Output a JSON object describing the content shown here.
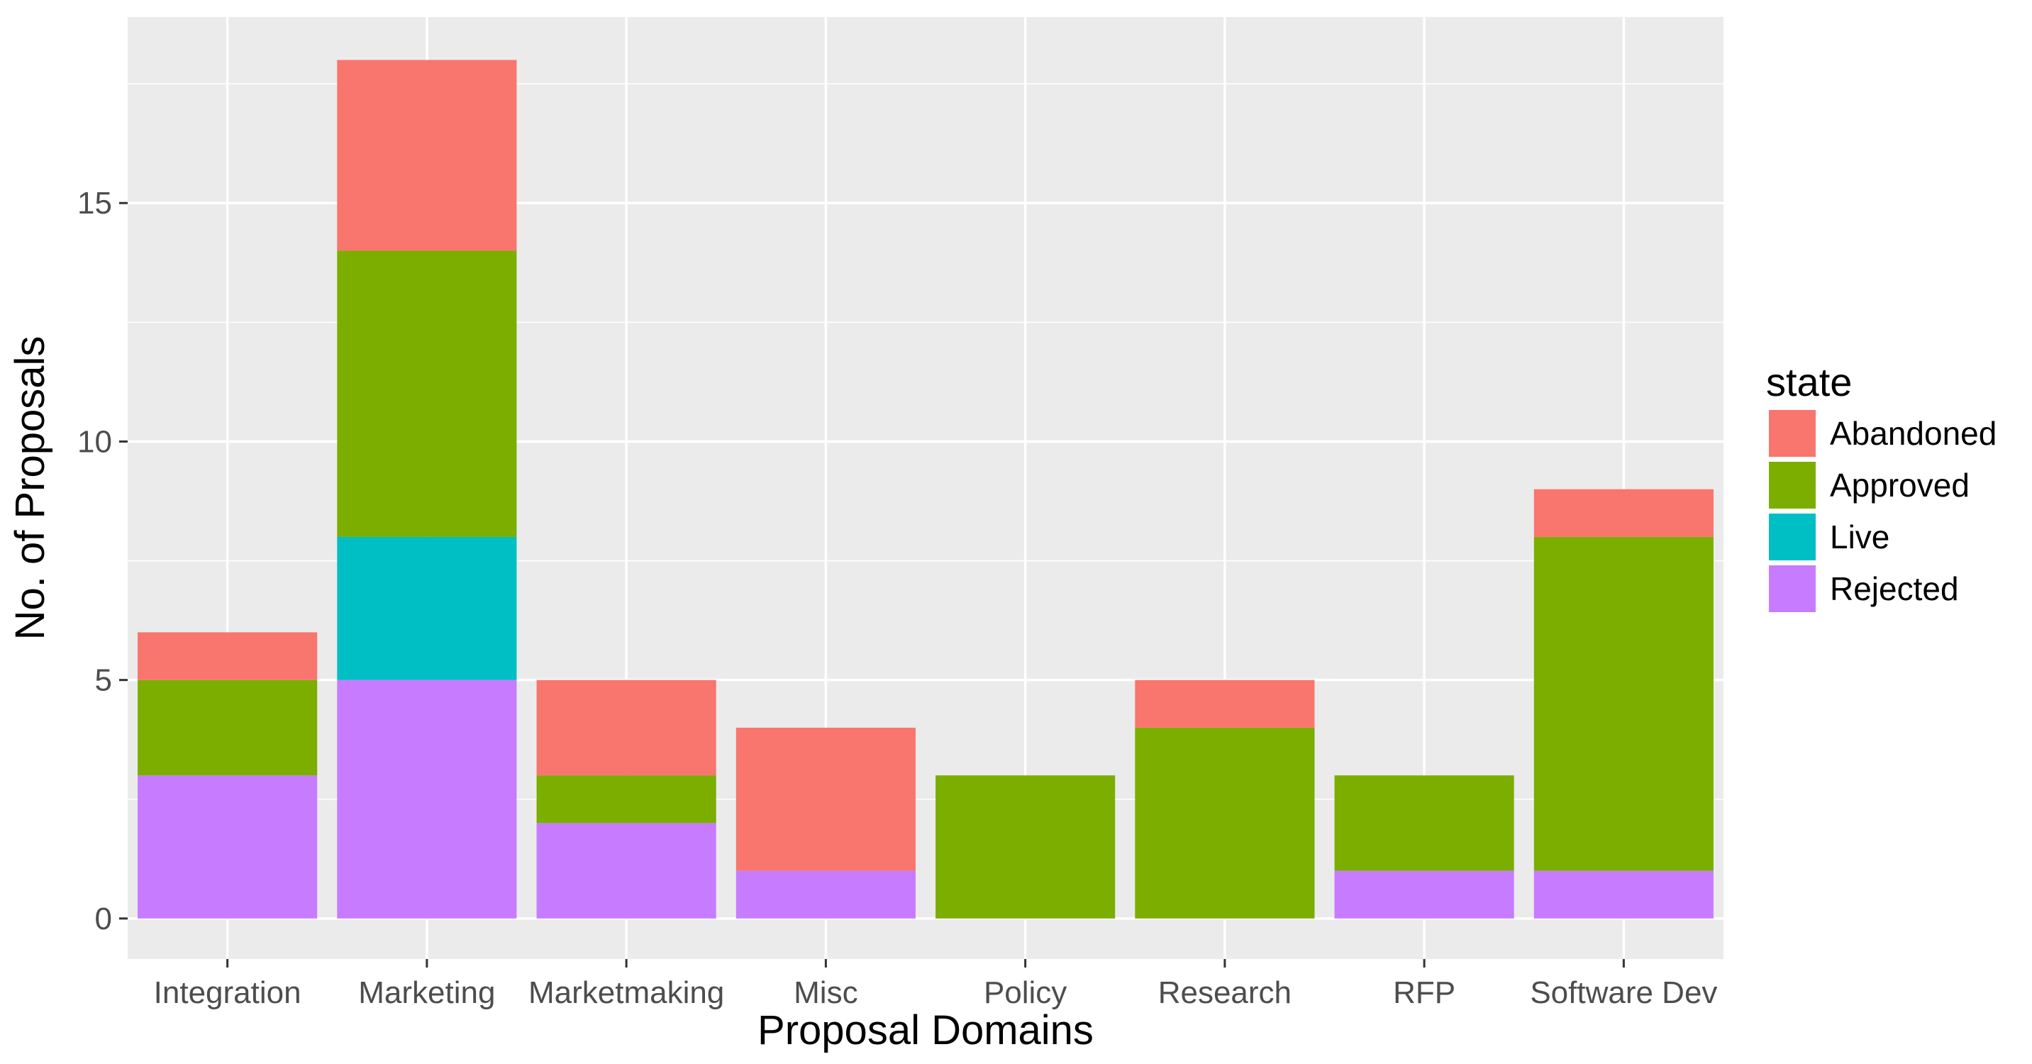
{
  "chart_data": {
    "type": "bar",
    "stacked": true,
    "title": "",
    "xlabel": "Proposal Domains",
    "ylabel": "No. of Proposals",
    "ylim": [
      -0.85,
      18.9
    ],
    "yticks": [
      0,
      5,
      10,
      15
    ],
    "grid": true,
    "legend_position": "right",
    "legend_title": "state",
    "categories": [
      "Integration",
      "Marketing",
      "Marketmaking",
      "Misc",
      "Policy",
      "Research",
      "RFP",
      "Software Dev"
    ],
    "series": [
      {
        "name": "Rejected",
        "color": "#C77CFF",
        "values": [
          3,
          5,
          2,
          1,
          0,
          0,
          1,
          1
        ]
      },
      {
        "name": "Live",
        "color": "#00BFC4",
        "values": [
          0,
          3,
          0,
          0,
          0,
          0,
          0,
          0
        ]
      },
      {
        "name": "Approved",
        "color": "#7CAE00",
        "values": [
          2,
          6,
          1,
          0,
          3,
          4,
          2,
          7
        ]
      },
      {
        "name": "Abandoned",
        "color": "#F8766D",
        "values": [
          1,
          4,
          2,
          3,
          0,
          1,
          0,
          1
        ]
      }
    ],
    "legend_order": [
      "Abandoned",
      "Approved",
      "Live",
      "Rejected"
    ]
  }
}
